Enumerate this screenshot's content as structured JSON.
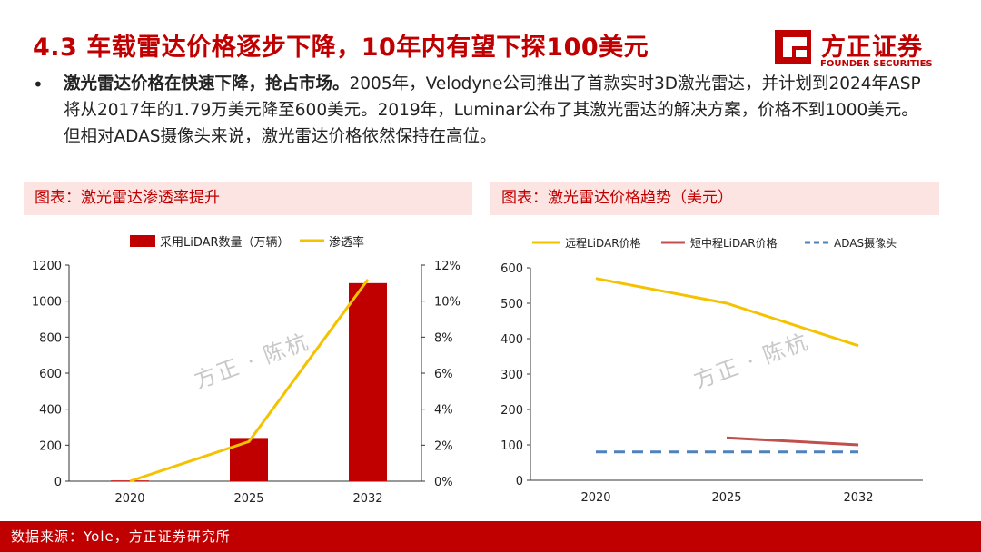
{
  "header": {
    "title": "4.3 车载雷达价格逐步下降，10年内有望下探100美元",
    "logo_cn": "方正证券",
    "logo_en": "FOUNDER SECURITIES",
    "brand_color": "#c00000"
  },
  "bullet": {
    "symbol": "•",
    "lead": "激光雷达价格在快速下降，抢占市场。",
    "body": "2005年，Velodyne公司推出了首款实时3D激光雷达，并计划到2024年ASP将从2017年的1.79万美元降至600美元。2019年，Luminar公布了其激光雷达的解决方案，价格不到1000美元。但相对ADAS摄像头来说，激光雷达价格依然保持在高位。"
  },
  "panels": {
    "left_title": "图表：激光雷达渗透率提升",
    "right_title": "图表：激光雷达价格趋势（美元）"
  },
  "watermark": "方正 · 陈杭",
  "footer": {
    "source": "数据来源：Yole，方正证券研究所"
  },
  "chart_data": [
    {
      "type": "bar",
      "categories": [
        "2020",
        "2025",
        "2032"
      ],
      "series": [
        {
          "name": "采用LiDAR数量（万辆）",
          "kind": "bar",
          "axis": "left",
          "color": "#c00000",
          "values": [
            4,
            240,
            1100
          ]
        },
        {
          "name": "渗透率",
          "kind": "line",
          "axis": "right",
          "color": "#f5c200",
          "values": [
            0,
            2.2,
            11.2
          ]
        }
      ],
      "ylim": [
        0,
        1200
      ],
      "yticks": [
        0,
        200,
        400,
        600,
        800,
        1000,
        1200
      ],
      "y2lim": [
        0,
        12
      ],
      "y2ticks": [
        "0%",
        "2%",
        "4%",
        "6%",
        "8%",
        "10%",
        "12%"
      ],
      "legend": "top",
      "grid": false
    },
    {
      "type": "line",
      "categories": [
        "2020",
        "2025",
        "2032"
      ],
      "series": [
        {
          "name": "远程LiDAR价格",
          "color": "#f5c200",
          "dash": false,
          "values": [
            570,
            500,
            380
          ]
        },
        {
          "name": "短中程LiDAR价格",
          "color": "#c0504d",
          "dash": false,
          "values": [
            null,
            120,
            100
          ]
        },
        {
          "name": "ADAS摄像头",
          "color": "#4f81bd",
          "dash": true,
          "values": [
            80,
            80,
            80
          ]
        }
      ],
      "ylim": [
        0,
        600
      ],
      "yticks": [
        0,
        100,
        200,
        300,
        400,
        500,
        600
      ],
      "legend": "top",
      "grid": false
    }
  ]
}
